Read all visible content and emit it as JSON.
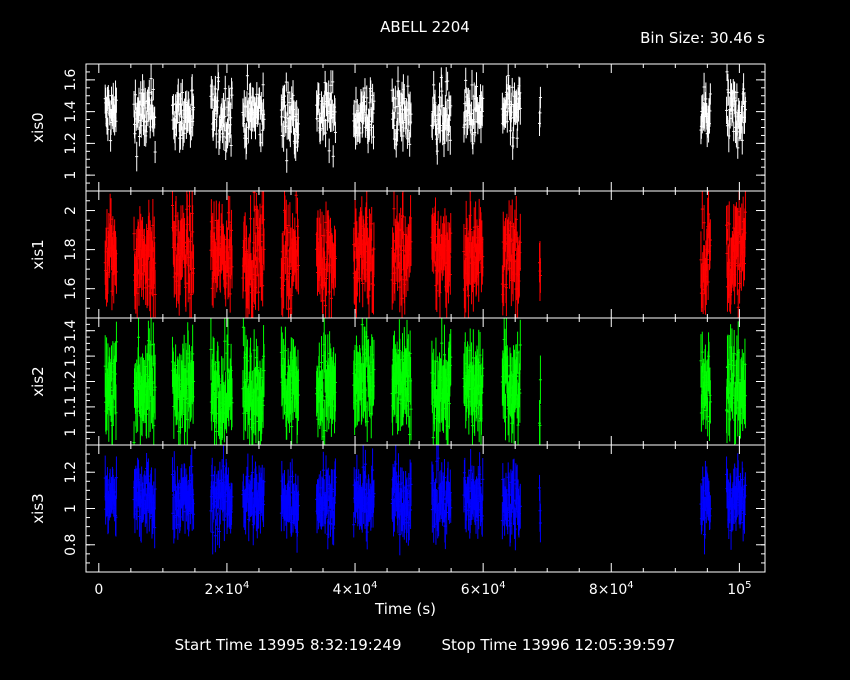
{
  "header": {
    "title": "ABELL 2204",
    "bin_size": "Bin Size: 30.46 s"
  },
  "footer": {
    "start_time": "Start Time 13995  8:32:19:249",
    "stop_time": "Stop Time 13996 12:05:39:597"
  },
  "chart_data": {
    "type": "line",
    "title": "ABELL 2204",
    "xlabel": "Time (s)",
    "xlim": [
      -2000,
      104000
    ],
    "x_ticks": [
      {
        "value": 0,
        "label": "0"
      },
      {
        "value": 20000,
        "label": "2×10",
        "exp": "4"
      },
      {
        "value": 40000,
        "label": "4×10",
        "exp": "4"
      },
      {
        "value": 60000,
        "label": "6×10",
        "exp": "4"
      },
      {
        "value": 80000,
        "label": "8×10",
        "exp": "4"
      },
      {
        "value": 100000,
        "label": "10",
        "exp": "5"
      }
    ],
    "observation_windows": [
      [
        1000,
        2800
      ],
      [
        5500,
        8800
      ],
      [
        11500,
        14800
      ],
      [
        17500,
        20800
      ],
      [
        22500,
        25800
      ],
      [
        28500,
        31200
      ],
      [
        34000,
        37000
      ],
      [
        39800,
        43000
      ],
      [
        45800,
        48800
      ],
      [
        52000,
        55000
      ],
      [
        57000,
        60000
      ],
      [
        63000,
        65800
      ],
      [
        68800,
        69000
      ],
      [
        94000,
        95500
      ],
      [
        98000,
        101000
      ]
    ],
    "panels": [
      {
        "ylabel": "xis0",
        "color": "#ffffff",
        "ylim": [
          0.9,
          1.7
        ],
        "mean": 1.38,
        "spread": 0.1,
        "err": 0.08,
        "ticks": [
          {
            "value": 1,
            "label": "1"
          },
          {
            "value": 1.2,
            "label": "1.2"
          },
          {
            "value": 1.4,
            "label": "1.4"
          },
          {
            "value": 1.6,
            "label": "1.6"
          }
        ]
      },
      {
        "ylabel": "xis1",
        "color": "#ff0000",
        "ylim": [
          1.45,
          2.1
        ],
        "mean": 1.77,
        "spread": 0.11,
        "err": 0.12,
        "ticks": [
          {
            "value": 1.6,
            "label": "1.6"
          },
          {
            "value": 1.8,
            "label": "1.8"
          },
          {
            "value": 2,
            "label": "2"
          }
        ]
      },
      {
        "ylabel": "xis2",
        "color": "#00ff00",
        "ylim": [
          0.95,
          1.45
        ],
        "mean": 1.18,
        "spread": 0.08,
        "err": 0.1,
        "ticks": [
          {
            "value": 1,
            "label": "1"
          },
          {
            "value": 1.1,
            "label": "1.1"
          },
          {
            "value": 1.2,
            "label": "1.2"
          },
          {
            "value": 1.3,
            "label": "1.3"
          },
          {
            "value": 1.4,
            "label": "1.4"
          }
        ]
      },
      {
        "ylabel": "xis3",
        "color": "#0000ff",
        "ylim": [
          0.65,
          1.35
        ],
        "mean": 1.05,
        "spread": 0.08,
        "err": 0.1,
        "ticks": [
          {
            "value": 0.8,
            "label": "0.8"
          },
          {
            "value": 1,
            "label": "1"
          },
          {
            "value": 1.2,
            "label": "1.2"
          }
        ]
      }
    ]
  }
}
